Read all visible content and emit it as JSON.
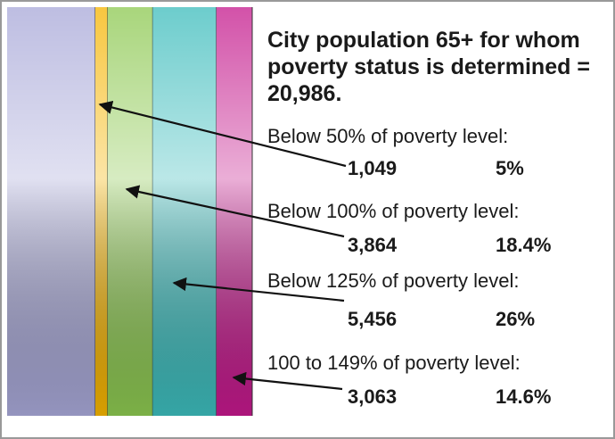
{
  "chart_data": {
    "type": "stacked-bar",
    "title": "City population 65+ for whom poverty status is determined = 20,986.",
    "categories": [
      "Below 50% of poverty level:",
      "Below 100% of poverty level:",
      "Below 125% of poverty level:",
      "100 to 149% of poverty level:"
    ],
    "values": [
      5,
      18.4,
      26,
      14.6
    ],
    "value_labels": [
      "5%",
      "18.4%",
      "26%",
      "14.6%"
    ],
    "counts": [
      {
        "value": 1049,
        "label": "1,049"
      },
      {
        "value": 3864,
        "label": "3,864"
      },
      {
        "value": 5456,
        "label": "5,456"
      },
      {
        "value": 3063,
        "label": "3,063"
      }
    ],
    "colors": [
      "#f5b400",
      "#8cc850",
      "#3cbcbc",
      "#c4188c"
    ],
    "remainder_color": "#a8a8d8",
    "xlim": [
      0,
      100
    ]
  }
}
